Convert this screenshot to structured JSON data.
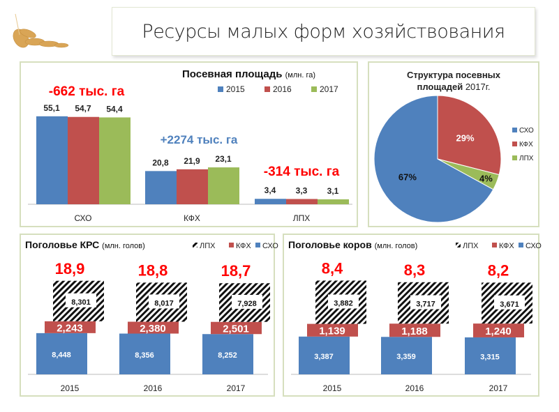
{
  "page_title": "Ресурсы малых форм хозяйствования",
  "colors": {
    "blue": "#4f81bd",
    "red": "#c0504d",
    "green": "#9bbb59",
    "accent_red": "#ff0000",
    "accent_blue": "#4f81bd"
  },
  "chart_data": [
    {
      "type": "bar",
      "title": "Посевная площадь",
      "unit": "(млн. га)",
      "categories": [
        "СХО",
        "КФХ",
        "ЛПХ"
      ],
      "series": [
        {
          "name": "2015",
          "values": [
            55.1,
            20.8,
            3.4
          ]
        },
        {
          "name": "2016",
          "values": [
            54.7,
            21.9,
            3.3
          ]
        },
        {
          "name": "2017",
          "values": [
            54.4,
            23.1,
            3.1
          ]
        }
      ],
      "value_labels": [
        [
          "55,1",
          "54,7",
          "54,4"
        ],
        [
          "20,8",
          "21,9",
          "23,1"
        ],
        [
          "3,4",
          "3,3",
          "3,1"
        ]
      ],
      "annotations": [
        "-662 тыс. га",
        "+2274 тыс. га",
        "-314 тыс. га"
      ],
      "legend": "top-right"
    },
    {
      "type": "pie",
      "title_bold": "Структура посевных площадей",
      "title_rest": "2017г.",
      "slices": [
        {
          "name": "КФХ",
          "value": 29,
          "label": "29%"
        },
        {
          "name": "ЛПХ",
          "value": 4,
          "label": "4%"
        },
        {
          "name": "СХО",
          "value": 67,
          "label": "67%"
        }
      ],
      "legend_order": [
        "СХО",
        "КФХ",
        "ЛПХ"
      ],
      "legend": "right"
    },
    {
      "type": "bar",
      "stacked": true,
      "title": "Поголовье КРС",
      "unit": "(млн. голов)",
      "categories": [
        "2015",
        "2016",
        "2017"
      ],
      "series": [
        {
          "name": "СХО",
          "values": [
            8.448,
            8.356,
            8.252
          ],
          "labels": [
            "8,448",
            "8,356",
            "8,252"
          ]
        },
        {
          "name": "КФХ",
          "values": [
            2.243,
            2.38,
            2.501
          ],
          "labels": [
            "2,243",
            "2,380",
            "2,501"
          ]
        },
        {
          "name": "ЛПХ",
          "values": [
            8.301,
            8.017,
            7.928
          ],
          "labels": [
            "8,301",
            "8,017",
            "7,928"
          ]
        }
      ],
      "totals": [
        "18,9",
        "18,8",
        "18,7"
      ],
      "legend_order": [
        "ЛПХ",
        "КФХ",
        "СХО"
      ],
      "legend": "top-right"
    },
    {
      "type": "bar",
      "stacked": true,
      "title": "Поголовье коров",
      "unit": "(млн. голов)",
      "categories": [
        "2015",
        "2016",
        "2017"
      ],
      "series": [
        {
          "name": "СХО",
          "values": [
            3.387,
            3.359,
            3.315
          ],
          "labels": [
            "3,387",
            "3,359",
            "3,315"
          ]
        },
        {
          "name": "КФХ",
          "values": [
            1.139,
            1.188,
            1.24
          ],
          "labels": [
            "1,139",
            "1,188",
            "1,240"
          ]
        },
        {
          "name": "ЛПХ",
          "values": [
            3.882,
            3.717,
            3.671
          ],
          "labels": [
            "3,882",
            "3,717",
            "3,671"
          ]
        }
      ],
      "totals": [
        "8,4",
        "8,3",
        "8,2"
      ],
      "legend_order": [
        "ЛПХ",
        "КФХ",
        "СХО"
      ],
      "legend": "top-right"
    }
  ]
}
